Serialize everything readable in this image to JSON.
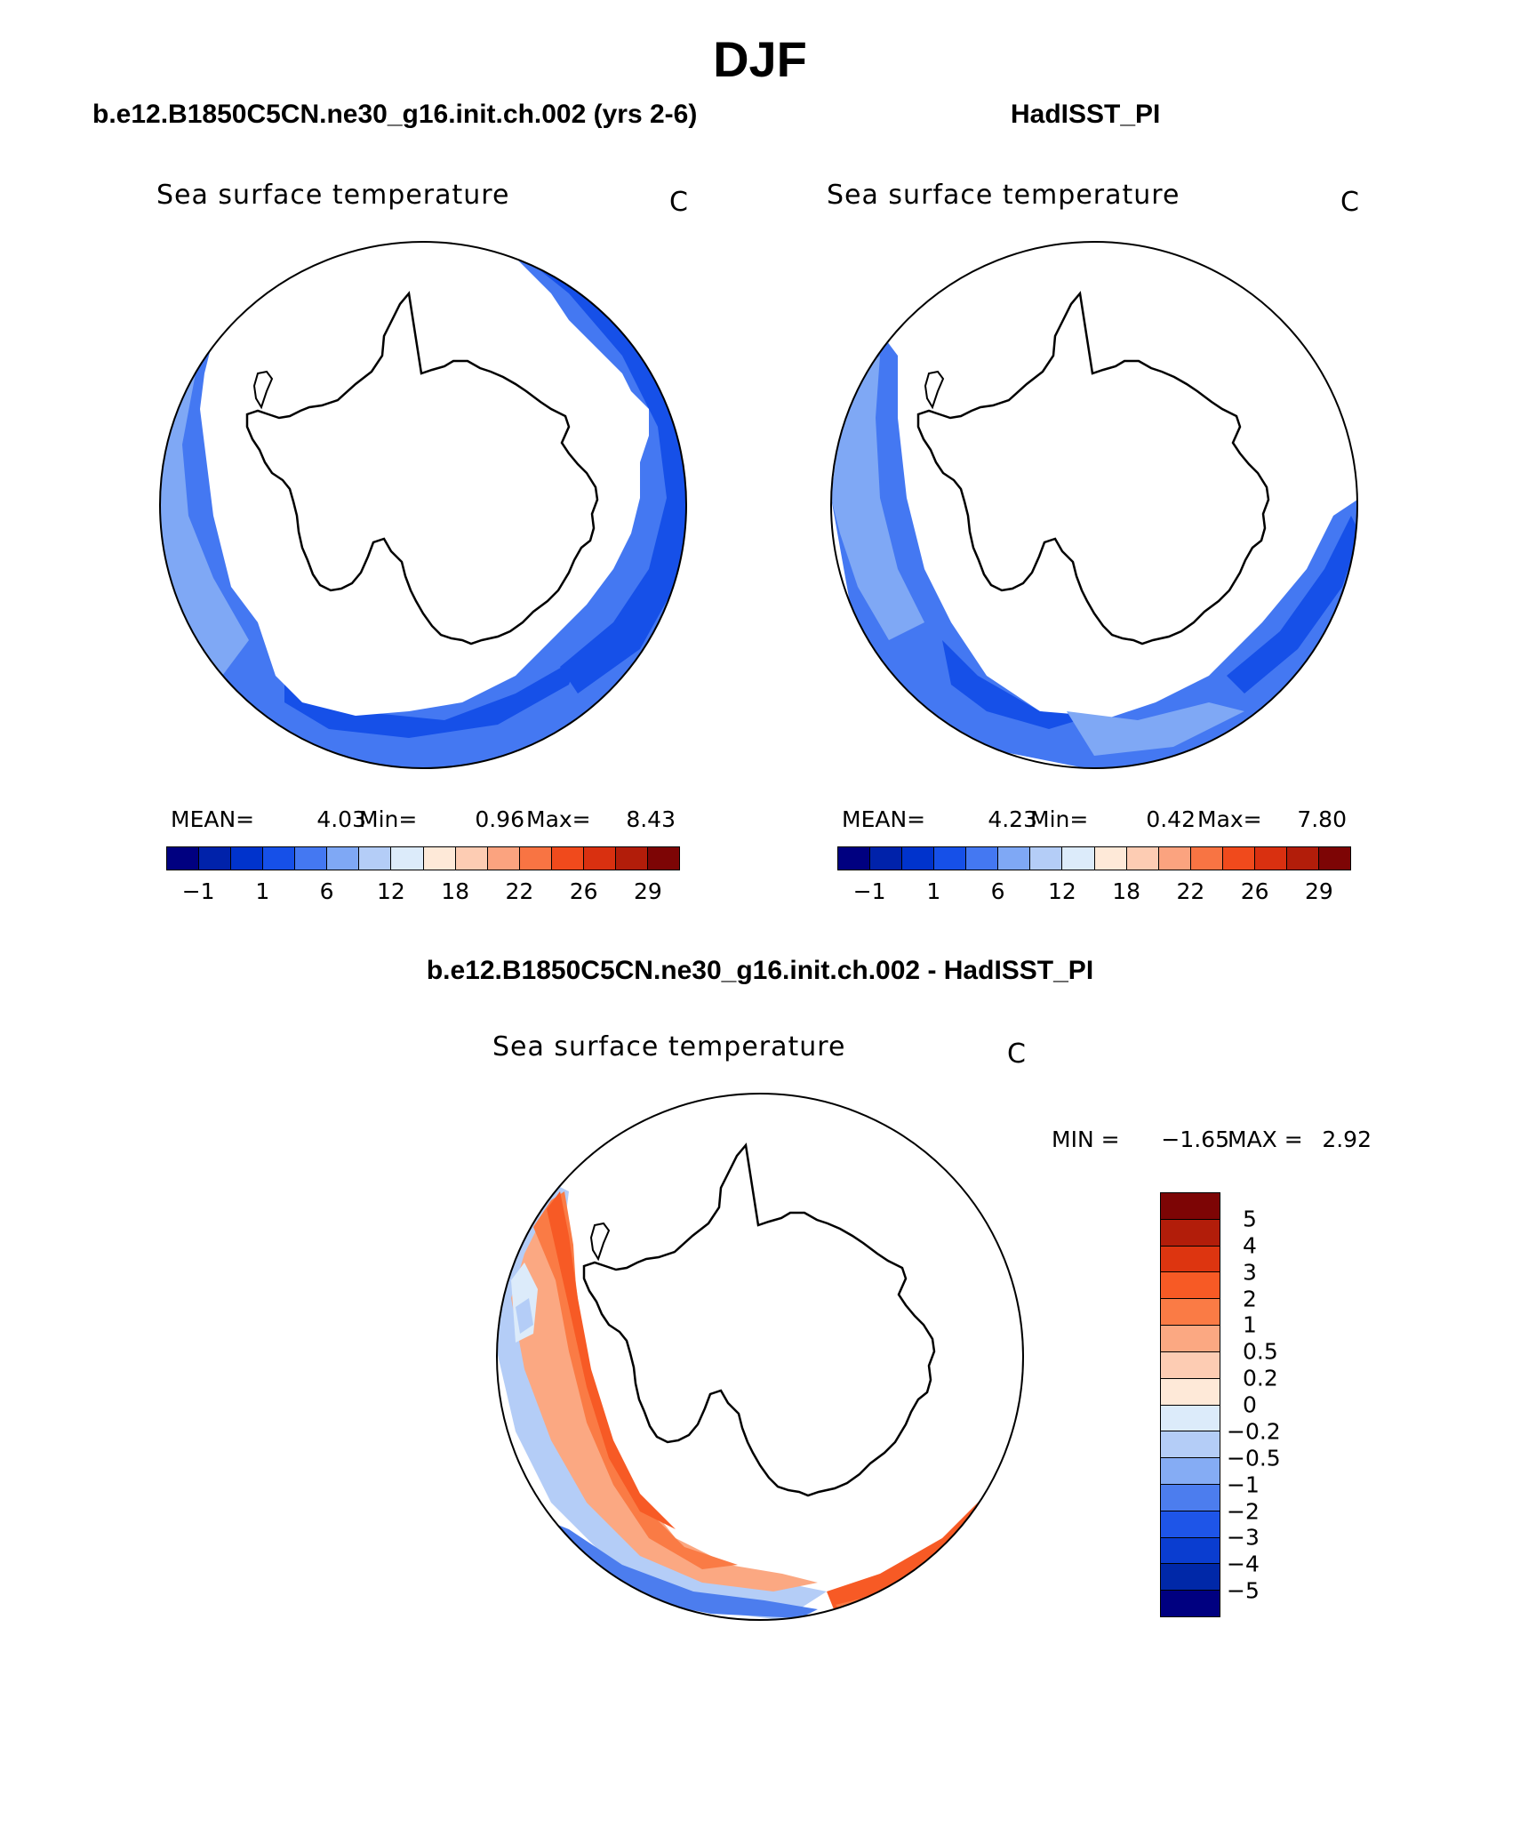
{
  "title": "DJF",
  "colors": {
    "model_scale": [
      "#000080",
      "#0022AA",
      "#0033CC",
      "#1650E8",
      "#4478F2",
      "#7FA8F5",
      "#B4CDF7",
      "#DCEBFA",
      "#FEE9D8",
      "#FDCCB3",
      "#FBA37F",
      "#F87443",
      "#F04A1C",
      "#D93010",
      "#B21D0A",
      "#7D0505"
    ],
    "diff_scale": [
      "#7D0505",
      "#B21D0A",
      "#DD3510",
      "#F75A25",
      "#FA7B45",
      "#FBA882",
      "#FDCCB3",
      "#FEE9D8",
      "#DCEBFA",
      "#B4CDF7",
      "#85ACF4",
      "#4C7DEE",
      "#1E55E8",
      "#0A3DD0",
      "#0028A8",
      "#000080"
    ]
  },
  "panels": [
    {
      "case": "b.e12.B1850C5CN.ne30_g16.init.ch.002 (yrs 2-6)",
      "title": "Sea surface temperature",
      "units": "C",
      "mean_label": "MEAN=",
      "mean": "4.03",
      "min_label": "Min=",
      "min": "0.96",
      "max_label": "Max=",
      "max": "8.43",
      "ticks": [
        "−1",
        "1",
        "6",
        "12",
        "18",
        "22",
        "26",
        "29"
      ]
    },
    {
      "case": "HadISST_PI",
      "title": "Sea surface temperature",
      "units": "C",
      "mean_label": "MEAN=",
      "mean": "4.23",
      "min_label": "Min=",
      "min": "0.42",
      "max_label": "Max=",
      "max": "7.80",
      "ticks": [
        "−1",
        "1",
        "6",
        "12",
        "18",
        "22",
        "26",
        "29"
      ]
    }
  ],
  "diff": {
    "case": "b.e12.B1850C5CN.ne30_g16.init.ch.002 - HadISST_PI",
    "title": "Sea surface temperature",
    "units": "C",
    "min_label": "MIN =",
    "min": "−1.65",
    "max_label": "MAX =",
    "max": "2.92",
    "ticks": [
      "5",
      "4",
      "3",
      "2",
      "1",
      "0.5",
      "0.2",
      "0",
      "−0.2",
      "−0.5",
      "−1",
      "−2",
      "−3",
      "−4",
      "−5"
    ]
  }
}
